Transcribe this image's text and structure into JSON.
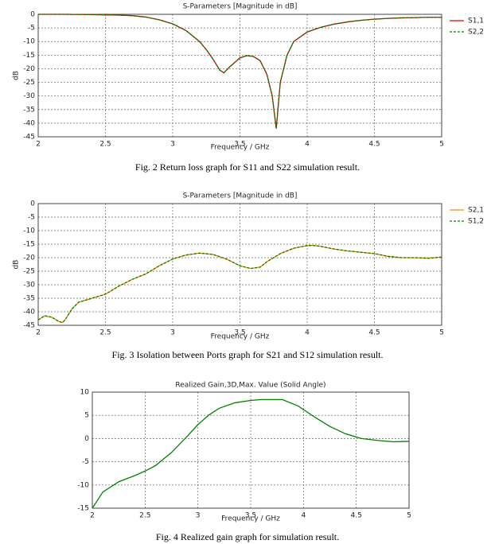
{
  "chart_data": [
    {
      "type": "line",
      "title": "S-Parameters [Magnitude in dB]",
      "xlabel": "Frequency / GHz",
      "ylabel": "dB",
      "caption": "Fig. 2 Return loss graph for S11 and S22 simulation result.",
      "x": [
        2,
        2.2,
        2.4,
        2.5,
        2.6,
        2.7,
        2.8,
        2.9,
        3.0,
        3.1,
        3.2,
        3.25,
        3.3,
        3.35,
        3.38,
        3.42,
        3.5,
        3.55,
        3.6,
        3.65,
        3.7,
        3.74,
        3.77,
        3.8,
        3.85,
        3.9,
        4.0,
        4.1,
        4.2,
        4.3,
        4.4,
        4.5,
        4.6,
        4.7,
        4.8,
        4.9,
        5
      ],
      "series": [
        {
          "name": "S1,1",
          "color": "#e00000",
          "style": "solid",
          "values": [
            0,
            0,
            -0.1,
            -0.2,
            -0.3,
            -0.5,
            -1,
            -2,
            -3.5,
            -6,
            -10,
            -13,
            -16.5,
            -20.5,
            -21.5,
            -19.5,
            -16,
            -15.2,
            -15.5,
            -17,
            -22,
            -30,
            -42,
            -25,
            -15,
            -10,
            -6.5,
            -4.8,
            -3.6,
            -2.8,
            -2.2,
            -1.8,
            -1.5,
            -1.3,
            -1.2,
            -1.1,
            -1.1
          ]
        },
        {
          "name": "S2,2",
          "color": "#008000",
          "style": "dashed",
          "values": [
            0,
            0,
            -0.1,
            -0.2,
            -0.3,
            -0.5,
            -1,
            -2,
            -3.5,
            -6,
            -10,
            -13,
            -16.5,
            -20.5,
            -21.5,
            -19.5,
            -16,
            -15.2,
            -15.5,
            -17,
            -22,
            -30,
            -42,
            -25,
            -15,
            -10,
            -6.5,
            -4.8,
            -3.6,
            -2.8,
            -2.2,
            -1.8,
            -1.5,
            -1.3,
            -1.2,
            -1.1,
            -1.1
          ]
        }
      ],
      "xlim": [
        2,
        5
      ],
      "xticks": [
        2,
        2.5,
        3,
        3.5,
        4,
        4.5,
        5
      ],
      "ylim": [
        -45,
        0
      ],
      "yticks": [
        0,
        -5,
        -10,
        -15,
        -20,
        -25,
        -30,
        -35,
        -40,
        -45
      ],
      "grid": true,
      "legend": "right"
    },
    {
      "type": "line",
      "title": "S-Parameters [Magnitude in dB]",
      "xlabel": "Frequency / GHz",
      "ylabel": "dB",
      "caption": "Fig. 3 Isolation between Ports graph for S21 and S12 simulation result.",
      "x": [
        2,
        2.05,
        2.1,
        2.15,
        2.18,
        2.2,
        2.25,
        2.3,
        2.4,
        2.5,
        2.6,
        2.7,
        2.8,
        2.9,
        3.0,
        3.1,
        3.2,
        3.3,
        3.4,
        3.5,
        3.58,
        3.65,
        3.7,
        3.8,
        3.9,
        4.0,
        4.05,
        4.1,
        4.2,
        4.3,
        4.4,
        4.5,
        4.6,
        4.7,
        4.8,
        4.9,
        5
      ],
      "series": [
        {
          "name": "S2,1",
          "color": "#ff8c00",
          "style": "solid",
          "values": [
            -43,
            -41.5,
            -42,
            -43.5,
            -44,
            -43,
            -39,
            -36.5,
            -35,
            -33.5,
            -30.5,
            -28,
            -26,
            -23,
            -20.5,
            -19,
            -18.3,
            -18.8,
            -20.5,
            -23,
            -24,
            -23.5,
            -21.5,
            -18.5,
            -16.5,
            -15.5,
            -15.5,
            -15.8,
            -16.8,
            -17.5,
            -18,
            -18.5,
            -19.5,
            -20,
            -20,
            -20.2,
            -19.8
          ]
        },
        {
          "name": "S1,2",
          "color": "#008000",
          "style": "dashed",
          "values": [
            -43,
            -41.5,
            -42,
            -43.5,
            -44,
            -43,
            -39,
            -36.5,
            -35,
            -33.5,
            -30.5,
            -28,
            -26,
            -23,
            -20.5,
            -19,
            -18.3,
            -18.8,
            -20.5,
            -23,
            -24,
            -23.5,
            -21.5,
            -18.5,
            -16.5,
            -15.5,
            -15.5,
            -15.8,
            -16.8,
            -17.5,
            -18,
            -18.5,
            -19.5,
            -20,
            -20,
            -20.2,
            -19.8
          ]
        }
      ],
      "xlim": [
        2,
        5
      ],
      "xticks": [
        2,
        2.5,
        3,
        3.5,
        4,
        4.5,
        5
      ],
      "ylim": [
        -45,
        0
      ],
      "yticks": [
        0,
        -5,
        -10,
        -15,
        -20,
        -25,
        -30,
        -35,
        -40,
        -45
      ],
      "grid": true,
      "legend": "right"
    },
    {
      "type": "line",
      "title": "Realized Gain,3D,Max. Value (Solid Angle)",
      "xlabel": "Frequency / GHz",
      "caption": "Fig. 4 Realized gain graph for simulation result.",
      "x": [
        2,
        2.1,
        2.25,
        2.4,
        2.5,
        2.6,
        2.75,
        2.9,
        3.0,
        3.1,
        3.2,
        3.35,
        3.5,
        3.6,
        3.8,
        3.95,
        4.1,
        4.25,
        4.4,
        4.55,
        4.7,
        4.85,
        5
      ],
      "values": [
        -15,
        -11.5,
        -9.3,
        -8,
        -7,
        -5.8,
        -3,
        0.5,
        3,
        5,
        6.5,
        7.7,
        8.2,
        8.4,
        8.4,
        7,
        4.7,
        2.6,
        1,
        0,
        -0.4,
        -0.7,
        -0.6
      ],
      "color": "#008000",
      "xlim": [
        2,
        5
      ],
      "xticks": [
        2,
        2.5,
        3,
        3.5,
        4,
        4.5,
        5
      ],
      "ylim": [
        -15,
        10
      ],
      "yticks": [
        10,
        5,
        0,
        -5,
        -10,
        -15
      ],
      "grid": true
    }
  ]
}
